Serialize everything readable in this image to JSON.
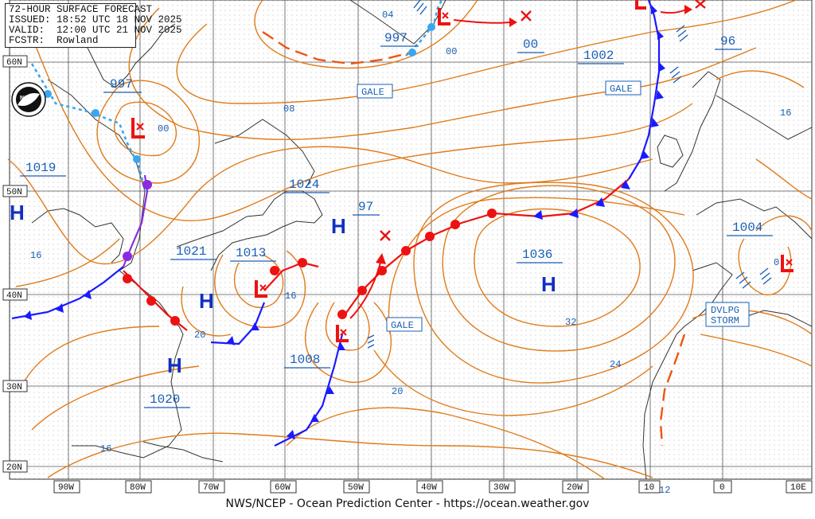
{
  "header": {
    "line1": "72-HOUR SURFACE FORECAST",
    "line2": "ISSUED: 18:52 UTC 18 NOV 2025",
    "line3": "VALID:  12:00 UTC 21 NOV 2025",
    "line4": "FCSTR:  Rowland"
  },
  "footer": "NWS/NCEP - Ocean Prediction Center - https://ocean.weather.gov",
  "logo": "NOAA",
  "lat_labels": [
    "60N",
    "50N",
    "40N",
    "30N",
    "20N"
  ],
  "lon_labels": [
    "90W",
    "80W",
    "70W",
    "60W",
    "50W",
    "40W",
    "30W",
    "20W",
    "10",
    "0",
    "10E"
  ],
  "pressure_labels": [
    "997",
    "997",
    "00",
    "1002",
    "96",
    "1019",
    "1024",
    "97",
    "1021",
    "1013",
    "1036",
    "1004",
    "1008",
    "1020"
  ],
  "isobar_values": [
    "04",
    "00",
    "08",
    "00",
    "16",
    "16",
    "20",
    "32",
    "24",
    "20",
    "16",
    "12",
    "0",
    "16"
  ],
  "systems": [
    {
      "type": "H",
      "name": "high-pressure-west-edge"
    },
    {
      "type": "H",
      "name": "high-pressure-newfoundland"
    },
    {
      "type": "H",
      "name": "high-pressure-canada-coast"
    },
    {
      "type": "H",
      "name": "high-pressure-southeast-us"
    },
    {
      "type": "H",
      "name": "high-pressure-azores"
    },
    {
      "type": "L",
      "name": "low-hudson"
    },
    {
      "type": "L",
      "name": "low-greenland"
    },
    {
      "type": "L",
      "name": "low-nova-scotia"
    },
    {
      "type": "L",
      "name": "low-central-atlantic"
    },
    {
      "type": "L",
      "name": "low-ireland"
    },
    {
      "type": "L",
      "name": "low-iberia"
    }
  ],
  "warnings": [
    "GALE",
    "GALE",
    "GALE",
    "DVLPG",
    "STORM"
  ],
  "colors": {
    "isobar": "#e07b1a",
    "text": "#1a5fb4",
    "cold": "#1a1aff",
    "warm": "#ee1111",
    "occluded": "#8a2be2",
    "trough": "#ee5511",
    "stationary_blue": "#3aa6ee"
  }
}
